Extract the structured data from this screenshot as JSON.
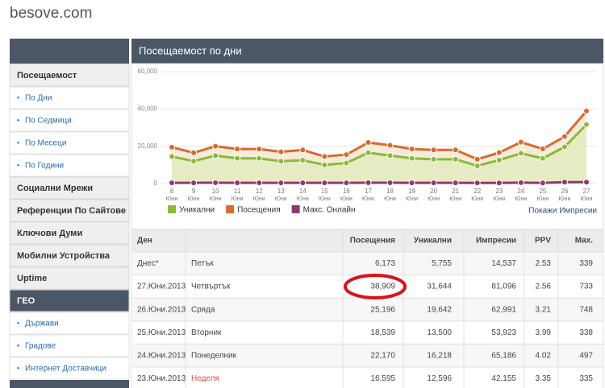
{
  "header": {
    "site": "besove.com"
  },
  "sidebar": {
    "sections": [
      {
        "title": "Посещаемост",
        "items": [
          "По Дни",
          "По Седмици",
          "По Месеци",
          "По Години"
        ]
      },
      {
        "title": "Социални Мрежи"
      },
      {
        "title": "Референции По Сайтове"
      },
      {
        "title": "Ключови Думи"
      },
      {
        "title": "Мобилни Устройства"
      },
      {
        "title": "Uptime"
      },
      {
        "title": "ГЕО",
        "items": [
          "Държави",
          "Градове",
          "Интернет Доставчици"
        ]
      }
    ]
  },
  "panel_title": "Посещаемост по дни",
  "chart_data": {
    "type": "line",
    "categories": [
      "8",
      "9",
      "10",
      "11",
      "12",
      "13",
      "14",
      "15",
      "16",
      "17",
      "18",
      "19",
      "20",
      "21",
      "22",
      "23",
      "24",
      "25",
      "26",
      "27"
    ],
    "x_sublabel": "Юни",
    "series": [
      {
        "name": "Уникални",
        "color": "#8db838",
        "values": [
          14500,
          12000,
          15000,
          13500,
          13500,
          12000,
          12500,
          10000,
          11000,
          16500,
          15000,
          13500,
          13000,
          13000,
          9500,
          12596,
          16218,
          13500,
          19642,
          31644
        ]
      },
      {
        "name": "Посещения",
        "color": "#d9692d",
        "values": [
          19500,
          16500,
          20000,
          18500,
          18500,
          17000,
          18000,
          14500,
          15500,
          22000,
          20500,
          18500,
          18000,
          18000,
          13000,
          16595,
          22170,
          18539,
          25196,
          38909
        ]
      },
      {
        "name": "Макс. Онлайн",
        "color": "#8e3a6e",
        "values": [
          400,
          400,
          420,
          400,
          400,
          400,
          400,
          380,
          390,
          450,
          420,
          400,
          400,
          400,
          350,
          335,
          497,
          338,
          748,
          733
        ]
      }
    ],
    "ylim": [
      0,
      60000
    ],
    "yticks": [
      0,
      {
        "value": 20000,
        "label": "20,000"
      },
      {
        "value": 40000,
        "label": "40,000"
      },
      {
        "value": 60000,
        "label": "60,000"
      }
    ],
    "grid": true,
    "legend": "bottom-left"
  },
  "link": "Покажи Импресии",
  "table": {
    "columns": [
      "Ден",
      "Посещения",
      "Уникални",
      "Импресии",
      "PPV",
      "Max."
    ],
    "rows": [
      [
        "Днес*",
        "Петък",
        "6,173",
        "5,755",
        "14,537",
        "2.53",
        "339"
      ],
      [
        "27.Юни.2013",
        "Четвъртък",
        "38,909",
        "31,644",
        "81,096",
        "2.56",
        "733"
      ],
      [
        "26.Юни.2013",
        "Сряда",
        "25,196",
        "19,642",
        "62,991",
        "3.21",
        "748"
      ],
      [
        "25.Юни.2013",
        "Вторник",
        "18,539",
        "13,500",
        "53,923",
        "3.99",
        "338"
      ],
      [
        "24.Юни.2013",
        "Понеделник",
        "22,170",
        "16,218",
        "65,186",
        "4.02",
        "497"
      ],
      [
        "23.Юни.2013",
        "Неделя",
        "16,595",
        "12,596",
        "42,155",
        "3.35",
        "335"
      ]
    ]
  }
}
